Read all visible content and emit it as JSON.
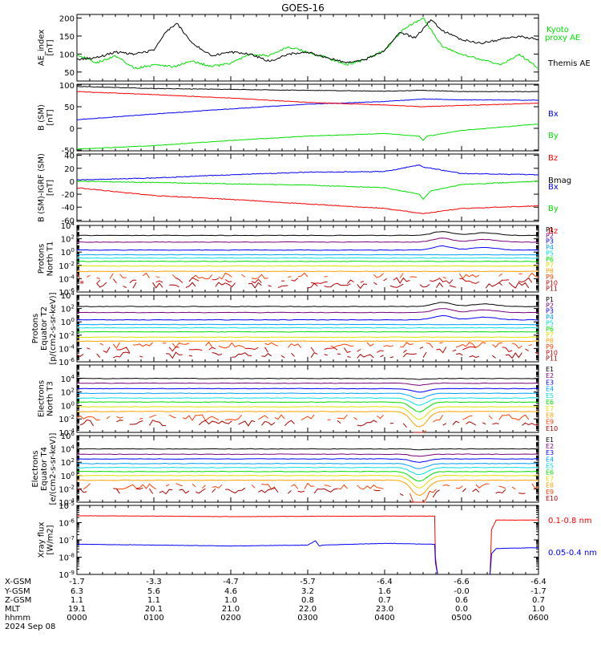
{
  "title": "GOES-16",
  "chart_data": [
    {
      "type": "line",
      "id": "ae",
      "ylabel": [
        "AE_index",
        "[nT]"
      ],
      "yscale": "linear",
      "ylim": [
        25,
        210
      ],
      "ticks": [
        {
          "v": 50,
          "label": "50"
        },
        {
          "v": 100,
          "label": "100"
        },
        {
          "v": 150,
          "label": "150"
        },
        {
          "v": 200,
          "label": "200"
        }
      ],
      "series": [
        {
          "name": "Kyoto proxy AE",
          "label_lines": [
            "Kyoto",
            "proxy AE"
          ],
          "color": "#00e000",
          "x": [
            0,
            0.25,
            0.5,
            0.75,
            1,
            1.25,
            1.5,
            1.75,
            2,
            2.25,
            2.5,
            2.75,
            3,
            3.25,
            3.5,
            3.75,
            4,
            4.25,
            4.5,
            4.75,
            5,
            5.25,
            5.5,
            5.75,
            6
          ],
          "values": [
            100,
            75,
            95,
            60,
            70,
            65,
            80,
            65,
            75,
            100,
            95,
            120,
            105,
            90,
            70,
            85,
            110,
            170,
            200,
            120,
            100,
            85,
            70,
            100,
            60
          ]
        },
        {
          "name": "Themis AE",
          "label_lines": [
            "Themis AE"
          ],
          "color": "#000000",
          "x": [
            0,
            0.25,
            0.5,
            0.75,
            1,
            1.15,
            1.3,
            1.5,
            1.75,
            2,
            2.25,
            2.5,
            2.75,
            3,
            3.25,
            3.5,
            3.75,
            4,
            4.2,
            4.4,
            4.6,
            4.75,
            5,
            5.25,
            5.5,
            5.75,
            6
          ],
          "values": [
            85,
            90,
            105,
            100,
            110,
            160,
            185,
            130,
            95,
            105,
            100,
            80,
            100,
            105,
            90,
            75,
            85,
            110,
            160,
            145,
            195,
            165,
            140,
            130,
            140,
            150,
            140
          ]
        }
      ]
    },
    {
      "type": "line",
      "id": "bsm",
      "ylabel": [
        "B (SM)",
        "[nT]"
      ],
      "yscale": "linear",
      "ylim": [
        -52,
        102
      ],
      "ticks": [
        {
          "v": -50,
          "label": "-50"
        },
        {
          "v": 0,
          "label": "0"
        },
        {
          "v": 50,
          "label": "50"
        },
        {
          "v": 100,
          "label": "100"
        }
      ],
      "series": [
        {
          "name": "Bx",
          "color": "#0000ff",
          "x": [
            0,
            1,
            2,
            3,
            4,
            4.5,
            5,
            6
          ],
          "values": [
            20,
            33,
            45,
            56,
            62,
            68,
            66,
            65
          ]
        },
        {
          "name": "By",
          "color": "#00e000",
          "x": [
            0,
            1,
            2,
            3,
            4,
            4.45,
            4.5,
            4.55,
            5,
            6
          ],
          "values": [
            -48,
            -40,
            -28,
            -18,
            -12,
            -18,
            -28,
            -18,
            -5,
            10
          ]
        },
        {
          "name": "Bz",
          "color": "#ff0000",
          "x": [
            0,
            1,
            2,
            3,
            4,
            4.5,
            5,
            6
          ],
          "values": [
            85,
            78,
            70,
            60,
            54,
            50,
            53,
            58
          ]
        },
        {
          "name": "Bmag",
          "color": "#000000",
          "x": [
            0,
            1,
            2,
            3,
            4,
            4.5,
            5,
            6
          ],
          "values": [
            97,
            92,
            90,
            88,
            86,
            88,
            85,
            85
          ]
        }
      ]
    },
    {
      "type": "line",
      "id": "bigrf",
      "ylabel": [
        "B (SM)-IGRF (SM)",
        "[nT]"
      ],
      "yscale": "linear",
      "ylim": [
        -62,
        42
      ],
      "ticks": [
        {
          "v": -60,
          "label": "-60"
        },
        {
          "v": -40,
          "label": "-40"
        },
        {
          "v": -20,
          "label": "-20"
        },
        {
          "v": 0,
          "label": "0"
        },
        {
          "v": 20,
          "label": "20"
        },
        {
          "v": 40,
          "label": "40"
        }
      ],
      "series": [
        {
          "name": "Bx",
          "color": "#0000ff",
          "x": [
            0,
            1,
            2,
            3,
            4,
            4.45,
            4.5,
            5,
            6
          ],
          "values": [
            2,
            5,
            10,
            14,
            15,
            25,
            22,
            12,
            10
          ]
        },
        {
          "name": "By",
          "color": "#00e000",
          "x": [
            0,
            1,
            2,
            3,
            4,
            4.45,
            4.5,
            4.6,
            5,
            6
          ],
          "values": [
            0,
            -2,
            -4,
            -6,
            -10,
            -20,
            -28,
            -15,
            -5,
            0
          ]
        },
        {
          "name": "Bz",
          "color": "#ff0000",
          "x": [
            0,
            1,
            2,
            3,
            4,
            4.5,
            5,
            6
          ],
          "values": [
            -10,
            -22,
            -28,
            -35,
            -42,
            -50,
            -42,
            -38
          ]
        }
      ]
    },
    {
      "type": "line",
      "id": "prot_t1",
      "ylabel": [
        "Protons",
        "North T1"
      ],
      "yscale": "log",
      "ylim": [
        -6,
        4
      ],
      "ticks": [
        {
          "v": -6
        },
        {
          "v": -4
        },
        {
          "v": -2
        },
        {
          "v": 0
        },
        {
          "v": 2
        },
        {
          "v": 4
        }
      ],
      "tick_labels": [
        "10-6",
        "10-4",
        "10-2",
        "100",
        "102",
        "104"
      ],
      "channels": [
        {
          "name": "P1",
          "color": "#000000",
          "level": 2.5
        },
        {
          "name": "P2",
          "color": "#7a007a",
          "level": 1.5
        },
        {
          "name": "P3",
          "color": "#0000ff",
          "level": 0.3
        },
        {
          "name": "P4",
          "color": "#00a0ff",
          "level": -0.4
        },
        {
          "name": "P5",
          "color": "#00e0e0",
          "level": -0.9
        },
        {
          "name": "P6",
          "color": "#00e000",
          "level": -1.4
        },
        {
          "name": "P7",
          "color": "#e0e000",
          "level": -2.1
        },
        {
          "name": "P8",
          "color": "#ffa000",
          "level": -2.9
        },
        {
          "name": "P9",
          "color": "#ff4000",
          "level": -3.6
        },
        {
          "name": "P10",
          "color": "#cc0000",
          "level": -4.3
        },
        {
          "name": "P11",
          "color": "#aa0000",
          "level": -5.0
        }
      ]
    },
    {
      "type": "line",
      "id": "prot_t2",
      "ylabel": [
        "Protons",
        "Equator T2",
        "[p/(cm2-s-sr-keV)]"
      ],
      "yscale": "log",
      "ylim": [
        -6,
        4
      ],
      "ticks": [
        {
          "v": -6
        },
        {
          "v": -4
        },
        {
          "v": -2
        },
        {
          "v": 0
        },
        {
          "v": 2
        },
        {
          "v": 4
        }
      ],
      "tick_labels": [
        "10-6",
        "10-4",
        "10-2",
        "100",
        "102",
        "104"
      ],
      "channels": [
        {
          "name": "P1",
          "color": "#000000",
          "level": 2.3
        },
        {
          "name": "P2",
          "color": "#7a007a",
          "level": 1.4
        },
        {
          "name": "P3",
          "color": "#0000ff",
          "level": 0.3
        },
        {
          "name": "P4",
          "color": "#00a0ff",
          "level": -0.4
        },
        {
          "name": "P5",
          "color": "#00e0e0",
          "level": -0.9
        },
        {
          "name": "P6",
          "color": "#00e000",
          "level": -1.5
        },
        {
          "name": "P7",
          "color": "#e0e000",
          "level": -2.3
        },
        {
          "name": "P8",
          "color": "#ffa000",
          "level": -2.9
        },
        {
          "name": "P9",
          "color": "#ff4000",
          "level": -3.5
        },
        {
          "name": "P10",
          "color": "#cc0000",
          "level": -4.2
        },
        {
          "name": "P11",
          "color": "#aa0000",
          "level": -5.0
        }
      ]
    },
    {
      "type": "line",
      "id": "elec_t3",
      "ylabel": [
        "Electrons",
        "North T3"
      ],
      "yscale": "log",
      "ylim": [
        -4,
        6
      ],
      "ticks": [
        {
          "v": -4
        },
        {
          "v": -2
        },
        {
          "v": 0
        },
        {
          "v": 2
        },
        {
          "v": 4
        }
      ],
      "tick_labels": [
        "10-4",
        "10-2",
        "100",
        "102",
        "104"
      ],
      "channels": [
        {
          "name": "E1",
          "color": "#000000",
          "level": 4.0
        },
        {
          "name": "E2",
          "color": "#7a007a",
          "level": 3.3
        },
        {
          "name": "E3",
          "color": "#0000ff",
          "level": 2.5
        },
        {
          "name": "E4",
          "color": "#00a0ff",
          "level": 1.8
        },
        {
          "name": "E5",
          "color": "#00e0e0",
          "level": 1.1
        },
        {
          "name": "E6",
          "color": "#00e000",
          "level": 0.5
        },
        {
          "name": "E7",
          "color": "#e0e000",
          "level": -0.2
        },
        {
          "name": "E8",
          "color": "#ffa000",
          "level": -0.9
        },
        {
          "name": "E9",
          "color": "#ff4000",
          "level": -1.8
        },
        {
          "name": "E10",
          "color": "#aa0000",
          "level": -2.6
        }
      ]
    },
    {
      "type": "line",
      "id": "elec_t4",
      "ylabel": [
        "Electrons",
        "Equator T4",
        "[e/(cm2-s-sr-keV)]"
      ],
      "yscale": "log",
      "ylim": [
        -4,
        6
      ],
      "ticks": [
        {
          "v": -4
        },
        {
          "v": -2
        },
        {
          "v": 0
        },
        {
          "v": 2
        },
        {
          "v": 4
        },
        {
          "v": 6
        }
      ],
      "tick_labels": [
        "10-4",
        "10-2",
        "100",
        "102",
        "104",
        "106"
      ],
      "channels": [
        {
          "name": "E1",
          "color": "#000000",
          "level": 4.0
        },
        {
          "name": "E2",
          "color": "#7a007a",
          "level": 3.2
        },
        {
          "name": "E3",
          "color": "#0000ff",
          "level": 2.5
        },
        {
          "name": "E4",
          "color": "#00a0ff",
          "level": 1.8
        },
        {
          "name": "E5",
          "color": "#00e0e0",
          "level": 1.2
        },
        {
          "name": "E6",
          "color": "#00e000",
          "level": 0.6
        },
        {
          "name": "E7",
          "color": "#e0e000",
          "level": 0.0
        },
        {
          "name": "E8",
          "color": "#ffa000",
          "level": -0.7
        },
        {
          "name": "E9",
          "color": "#ff4000",
          "level": -1.6
        },
        {
          "name": "E10",
          "color": "#aa0000",
          "level": -2.3
        }
      ]
    },
    {
      "type": "line",
      "id": "xray",
      "ylabel": [
        "Xray flux",
        "[W/m2]"
      ],
      "yscale": "log",
      "ylim": [
        -9,
        -5
      ],
      "ticks": [
        {
          "v": -9
        },
        {
          "v": -8
        },
        {
          "v": -7
        },
        {
          "v": -6
        },
        {
          "v": -5
        }
      ],
      "tick_labels": [
        "10-9",
        "10-8",
        "10-7",
        "10-6",
        "10-5"
      ],
      "series": [
        {
          "name": "0.1-0.8 nm",
          "color": "#ff0000",
          "x": [
            0,
            1,
            2,
            3,
            4,
            4.65,
            4.66,
            4.69,
            null,
            5.37,
            5.39,
            5.45,
            6
          ],
          "values": [
            -5.6,
            -5.62,
            -5.65,
            -5.63,
            -5.62,
            -5.62,
            -8.0,
            -9.1,
            null,
            -9.1,
            -6.4,
            -5.85,
            -5.85
          ]
        },
        {
          "name": "0.05-0.4 nm",
          "color": "#0000ff",
          "x": [
            0,
            1,
            2,
            3,
            3.1,
            3.15,
            3.2,
            4,
            4.65,
            4.66,
            4.69,
            null,
            5.37,
            5.39,
            5.45,
            6
          ],
          "values": [
            -7.25,
            -7.3,
            -7.35,
            -7.3,
            -7.05,
            -7.35,
            -7.3,
            -7.2,
            -7.25,
            -8.3,
            -9.1,
            null,
            -9.1,
            -7.8,
            -7.5,
            -7.45
          ]
        }
      ]
    }
  ],
  "xaxis": {
    "tick_hours": [
      0,
      1,
      2,
      3,
      4,
      5,
      6
    ],
    "row_labels": [
      "X-GSM",
      "Y-GSM",
      "Z-GSM",
      "MLT",
      "hhmm"
    ],
    "rows": [
      [
        "-1.7",
        "-3.3",
        "-4.7",
        "-5.7",
        "-6.4",
        "-6.6",
        "-6.4"
      ],
      [
        "6.3",
        "5.6",
        "4.6",
        "3.2",
        "1.6",
        "-0.0",
        "-1.7"
      ],
      [
        "1.1",
        "1.1",
        "1.0",
        "0.8",
        "0.7",
        "0.6",
        "0.7"
      ],
      [
        "19.1",
        "20.1",
        "21.0",
        "22.0",
        "23.0",
        "0.0",
        "1.0"
      ],
      [
        "0000",
        "0100",
        "0200",
        "0300",
        "0400",
        "0500",
        "0600"
      ]
    ],
    "date": "2024 Sep 08"
  }
}
